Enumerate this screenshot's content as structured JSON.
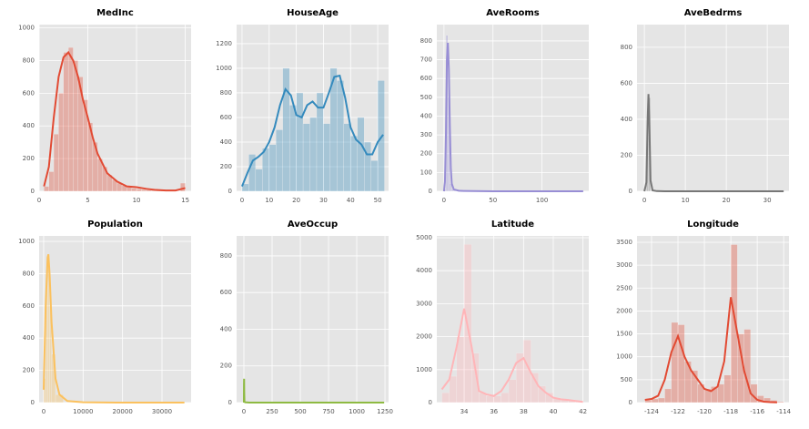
{
  "chart_data": [
    {
      "type": "histogram",
      "title": "MedInc",
      "color": "#e24a33",
      "grid": true,
      "bins": [
        0.5,
        1,
        1.5,
        2,
        2.5,
        3,
        3.5,
        4,
        4.5,
        5,
        5.5,
        6,
        6.5,
        7,
        7.5,
        8,
        8.5,
        9,
        9.5,
        10,
        10.5,
        11,
        11.5,
        12,
        12.5,
        13,
        13.5,
        14,
        14.5,
        15
      ],
      "counts": [
        30,
        120,
        350,
        600,
        850,
        880,
        800,
        700,
        560,
        420,
        300,
        200,
        150,
        100,
        70,
        50,
        35,
        25,
        18,
        14,
        10,
        8,
        6,
        5,
        4,
        3,
        3,
        2,
        50
      ],
      "kde_x": [
        0.5,
        1,
        1.5,
        2,
        2.5,
        3,
        3.5,
        4,
        4.5,
        5,
        5.5,
        6,
        7,
        8,
        9,
        10,
        11,
        12,
        13,
        14,
        15
      ],
      "kde_values": [
        30,
        150,
        450,
        700,
        820,
        850,
        800,
        700,
        560,
        450,
        330,
        230,
        110,
        60,
        30,
        25,
        15,
        8,
        5,
        5,
        20
      ],
      "xlim": [
        0,
        15.6
      ],
      "ylim": [
        0,
        1020
      ],
      "xticks": [
        0,
        5,
        10,
        15
      ],
      "yticks": [
        0,
        200,
        400,
        600,
        800,
        1000
      ]
    },
    {
      "type": "histogram",
      "title": "HouseAge",
      "color": "#348abd",
      "grid": true,
      "bins": [
        0,
        2.5,
        5,
        7.5,
        10,
        12.5,
        15,
        17.5,
        20,
        22.5,
        25,
        27.5,
        30,
        32.5,
        35,
        37.5,
        40,
        42.5,
        45,
        47.5,
        50,
        52.5
      ],
      "counts": [
        60,
        300,
        180,
        350,
        380,
        500,
        1000,
        700,
        800,
        550,
        600,
        800,
        550,
        1000,
        900,
        550,
        450,
        600,
        400,
        250,
        900
      ],
      "kde_x": [
        0,
        2,
        4,
        6,
        8,
        10,
        12,
        14,
        16,
        18,
        20,
        22,
        24,
        26,
        28,
        30,
        32,
        34,
        36,
        38,
        40,
        42,
        44,
        46,
        48,
        50,
        52
      ],
      "kde_values": [
        40,
        150,
        250,
        280,
        320,
        400,
        520,
        700,
        830,
        780,
        620,
        600,
        700,
        730,
        680,
        680,
        800,
        930,
        940,
        760,
        520,
        420,
        380,
        300,
        300,
        400,
        460
      ],
      "xlim": [
        -2,
        54
      ],
      "ylim": [
        0,
        1355
      ],
      "xticks": [
        0,
        10,
        20,
        30,
        40,
        50
      ],
      "yticks": [
        0,
        200,
        400,
        600,
        800,
        1000,
        1200
      ]
    },
    {
      "type": "histogram",
      "title": "AveRooms",
      "color": "#988ed5",
      "grid": true,
      "bins": [
        0,
        2,
        4,
        6,
        8,
        10,
        12
      ],
      "counts": [
        10,
        830,
        500,
        40,
        10,
        5
      ],
      "kde_x": [
        0,
        1,
        2,
        3,
        4,
        5,
        6,
        7,
        8,
        10,
        15,
        20,
        30,
        50,
        100,
        142
      ],
      "kde_values": [
        0,
        50,
        300,
        700,
        790,
        650,
        350,
        120,
        40,
        10,
        3,
        2,
        1,
        0,
        0,
        0
      ],
      "xlim": [
        -7.3,
        147.7
      ],
      "ylim": [
        0,
        887
      ],
      "xticks": [
        0,
        50,
        100
      ],
      "yticks": [
        0,
        100,
        200,
        300,
        400,
        500,
        600,
        700,
        800
      ]
    },
    {
      "type": "histogram",
      "title": "AveBedrms",
      "color": "#777777",
      "grid": true,
      "bins": [
        0.5,
        1,
        1.5
      ],
      "counts": [
        300,
        520
      ],
      "kde_x": [
        0,
        0.5,
        0.8,
        1,
        1.2,
        1.5,
        2,
        3,
        5,
        34
      ],
      "kde_values": [
        0,
        50,
        400,
        540,
        400,
        60,
        5,
        1,
        0,
        0
      ],
      "xlim": [
        -1.8,
        35.3
      ],
      "ylim": [
        0,
        926
      ],
      "xticks": [
        0,
        10,
        20,
        30
      ],
      "yticks": [
        0,
        200,
        400,
        600,
        800
      ]
    },
    {
      "type": "histogram",
      "title": "Population",
      "color": "#fbc15e",
      "grid": true,
      "bins": [
        0,
        500,
        1000,
        1500,
        2000,
        3000,
        5000
      ],
      "counts": [
        150,
        700,
        900,
        600,
        300,
        50
      ],
      "kde_x": [
        0,
        500,
        1000,
        1200,
        1500,
        2000,
        3000,
        4000,
        6000,
        10000,
        20000,
        35682
      ],
      "kde_values": [
        80,
        600,
        900,
        920,
        800,
        500,
        150,
        50,
        10,
        2,
        0,
        0
      ],
      "xlim": [
        -1150,
        37380
      ],
      "ylim": [
        0,
        1034
      ],
      "xticks": [
        0,
        10000,
        20000,
        30000
      ],
      "yticks": [
        0,
        200,
        400,
        600,
        800,
        1000
      ]
    },
    {
      "type": "histogram",
      "title": "AveOccup",
      "color": "#8eba42",
      "grid": true,
      "bins": [
        0,
        5,
        10
      ],
      "counts": [
        120,
        5
      ],
      "kde_x": [
        0,
        1,
        2,
        3,
        5,
        10,
        50,
        1243
      ],
      "kde_values": [
        0,
        100,
        130,
        60,
        5,
        2,
        0,
        0
      ],
      "xlim": [
        -64.5,
        1282
      ],
      "ylim": [
        0,
        909
      ],
      "xticks": [
        0,
        250,
        500,
        750,
        1000,
        1250
      ],
      "yticks": [
        0,
        200,
        400,
        600,
        800
      ]
    },
    {
      "type": "histogram",
      "title": "Latitude",
      "color": "#ffb5b8",
      "grid": true,
      "bins": [
        32.5,
        33,
        33.5,
        34,
        34.5,
        35,
        35.5,
        36,
        36.5,
        37,
        37.5,
        38,
        38.5,
        39,
        39.5,
        40,
        40.5,
        41,
        41.5,
        42
      ],
      "counts": [
        300,
        800,
        2000,
        4800,
        1500,
        300,
        200,
        200,
        300,
        700,
        1500,
        1900,
        900,
        500,
        300,
        150,
        100,
        80,
        50
      ],
      "kde_x": [
        32.5,
        33,
        33.5,
        34,
        34.5,
        35,
        35.5,
        36,
        36.5,
        37,
        37.5,
        38,
        38.5,
        39,
        39.5,
        40,
        40.5,
        41,
        41.5,
        42
      ],
      "kde_values": [
        400,
        700,
        1700,
        2850,
        1700,
        350,
        250,
        200,
        350,
        700,
        1200,
        1350,
        900,
        500,
        300,
        150,
        100,
        80,
        50,
        20
      ],
      "xlim": [
        32.16,
        42.39
      ],
      "ylim": [
        0,
        5055
      ],
      "xticks": [
        34,
        36,
        38,
        40,
        42
      ],
      "yticks": [
        0,
        1000,
        2000,
        3000,
        4000,
        5000
      ]
    },
    {
      "type": "histogram",
      "title": "Longitude",
      "color": "#e24a33",
      "grid": true,
      "bins": [
        -124.5,
        -124,
        -123.5,
        -123,
        -122.5,
        -122,
        -121.5,
        -121,
        -120.5,
        -120,
        -119.5,
        -119,
        -118.5,
        -118,
        -117.5,
        -117,
        -116.5,
        -116,
        -115.5,
        -115,
        -114.5,
        -114
      ],
      "counts": [
        50,
        80,
        100,
        300,
        1750,
        1700,
        900,
        700,
        400,
        300,
        350,
        400,
        600,
        3450,
        1500,
        1600,
        400,
        150,
        100,
        50,
        20
      ],
      "kde_x": [
        -124.5,
        -124,
        -123.5,
        -123,
        -122.5,
        -122,
        -121.5,
        -121,
        -120.5,
        -120,
        -119.5,
        -119,
        -118.5,
        -118,
        -117.5,
        -117,
        -116.5,
        -116,
        -115.5,
        -115,
        -114.5
      ],
      "kde_values": [
        60,
        80,
        150,
        500,
        1100,
        1450,
        1000,
        700,
        500,
        300,
        250,
        350,
        900,
        2300,
        1500,
        700,
        200,
        60,
        20,
        10,
        5
      ],
      "xlim": [
        -125.1,
        -113.6
      ],
      "ylim": [
        0,
        3639
      ],
      "xticks": [
        -124,
        -122,
        -120,
        -118,
        -116,
        -114
      ],
      "yticks": [
        0,
        500,
        1000,
        1500,
        2000,
        2500,
        3000,
        3500
      ]
    }
  ]
}
